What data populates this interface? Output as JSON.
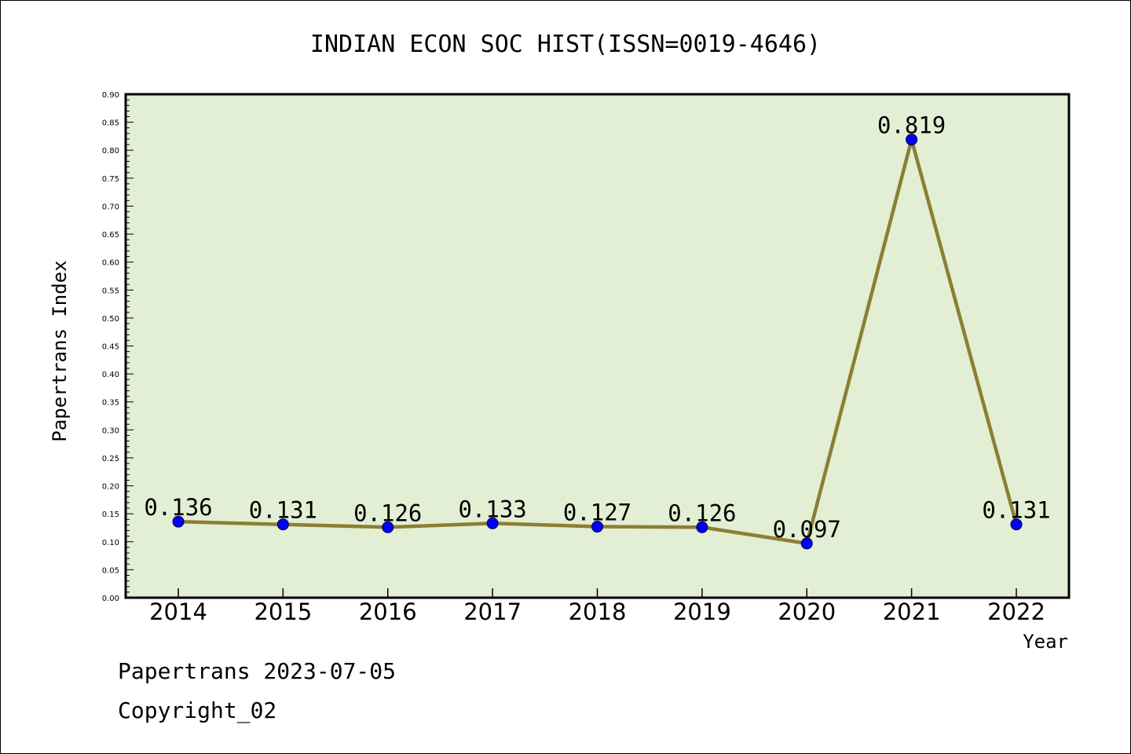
{
  "chart_data": {
    "type": "line",
    "title": "INDIAN ECON SOC HIST(ISSN=0019-4646)",
    "xlabel": "Year",
    "ylabel": "Papertrans Index",
    "ylim": [
      0,
      0.9
    ],
    "y_ticks": [
      "0.00",
      "0.05",
      "0.10",
      "0.15",
      "0.20",
      "0.25",
      "0.30",
      "0.35",
      "0.40",
      "0.45",
      "0.50",
      "0.55",
      "0.60",
      "0.65",
      "0.70",
      "0.75",
      "0.80",
      "0.85",
      "0.90"
    ],
    "categories": [
      "2014",
      "2015",
      "2016",
      "2017",
      "2018",
      "2019",
      "2020",
      "2021",
      "2022"
    ],
    "series": [
      {
        "values": [
          0.136,
          0.131,
          0.126,
          0.133,
          0.127,
          0.126,
          0.097,
          0.819,
          0.131
        ],
        "labels": [
          "0.136",
          "0.131",
          "0.126",
          "0.133",
          "0.127",
          "0.126",
          "0.097",
          "0.819",
          "0.131"
        ]
      }
    ],
    "grid": false,
    "colors": {
      "plot_bg": "#e2efd4",
      "line": "#8c7e33",
      "marker": "#0000ff"
    }
  },
  "footer": {
    "line1": "Papertrans 2023-07-05",
    "line2": "Copyright_02"
  }
}
